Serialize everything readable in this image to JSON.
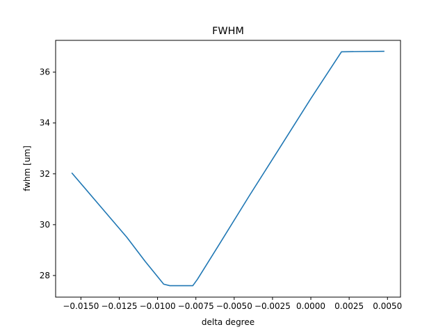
{
  "chart_data": {
    "type": "line",
    "title": "FWHM",
    "xlabel": "delta degree",
    "ylabel": "fwhm [um]",
    "xlim": [
      -0.01665,
      0.00585
    ],
    "ylim": [
      27.15,
      37.25
    ],
    "grid": false,
    "legend": "none",
    "x_ticks": [
      -0.015,
      -0.0125,
      -0.01,
      -0.0075,
      -0.005,
      -0.0025,
      0.0,
      0.0025,
      0.005
    ],
    "x_tick_labels": [
      "−0.0150",
      "−0.0125",
      "−0.0100",
      "−0.0075",
      "−0.0050",
      "−0.0025",
      "0.0000",
      "0.0025",
      "0.0050"
    ],
    "y_ticks": [
      28,
      30,
      32,
      34,
      36
    ],
    "y_tick_labels": [
      "28",
      "30",
      "32",
      "34",
      "36"
    ],
    "series": [
      {
        "color": "#1f77b4",
        "x": [
          -0.0156,
          -0.0138,
          -0.012,
          -0.0108,
          -0.0096,
          -0.0092,
          -0.0087,
          -0.0084,
          -0.008,
          -0.0077,
          -0.0074,
          -0.006,
          -0.004,
          -0.002,
          0.0,
          0.002,
          0.0048
        ],
        "y": [
          32.04,
          30.77,
          29.5,
          28.55,
          27.66,
          27.6,
          27.6,
          27.6,
          27.6,
          27.6,
          27.85,
          29.2,
          31.15,
          33.05,
          34.96,
          36.8,
          36.82
        ]
      }
    ]
  }
}
